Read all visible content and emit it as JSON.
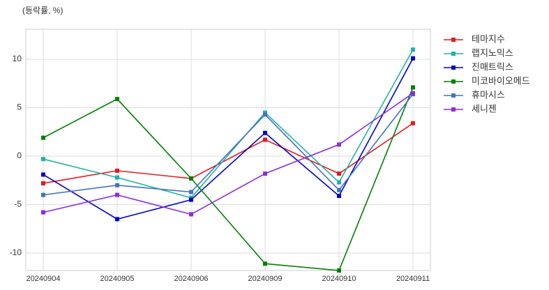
{
  "chart_data": {
    "type": "line",
    "annotation": "(등락률, %)",
    "categories": [
      "20240904",
      "20240905",
      "20240906",
      "20240909",
      "20240910",
      "20240911"
    ],
    "series": [
      {
        "name": "테마지수",
        "color": "#e31a1c",
        "values": [
          -2.8,
          -1.5,
          -2.3,
          1.7,
          -1.8,
          3.4
        ]
      },
      {
        "name": "랩지노믹스",
        "color": "#20b2aa",
        "values": [
          -0.3,
          -2.2,
          -4.3,
          4.5,
          -2.7,
          11.0
        ]
      },
      {
        "name": "진매트릭스",
        "color": "#0000cd",
        "values": [
          -1.9,
          -6.5,
          -4.5,
          2.4,
          -4.1,
          10.1
        ]
      },
      {
        "name": "미코바이오메드",
        "color": "#008000",
        "values": [
          1.9,
          5.9,
          -2.3,
          -11.1,
          -11.8,
          7.1
        ]
      },
      {
        "name": "휴마시스",
        "color": "#4472c4",
        "values": [
          -4.0,
          -3.0,
          -3.7,
          4.3,
          -3.5,
          6.4
        ]
      },
      {
        "name": "세니젠",
        "color": "#8a2be2",
        "values": [
          -5.8,
          -4.0,
          -6.0,
          -1.8,
          1.2,
          6.5
        ]
      }
    ],
    "ylim": [
      -11.8,
      13.1
    ],
    "yticks": [
      -10,
      -5,
      0,
      5,
      10
    ],
    "grid": true,
    "legend": "outside-right"
  }
}
